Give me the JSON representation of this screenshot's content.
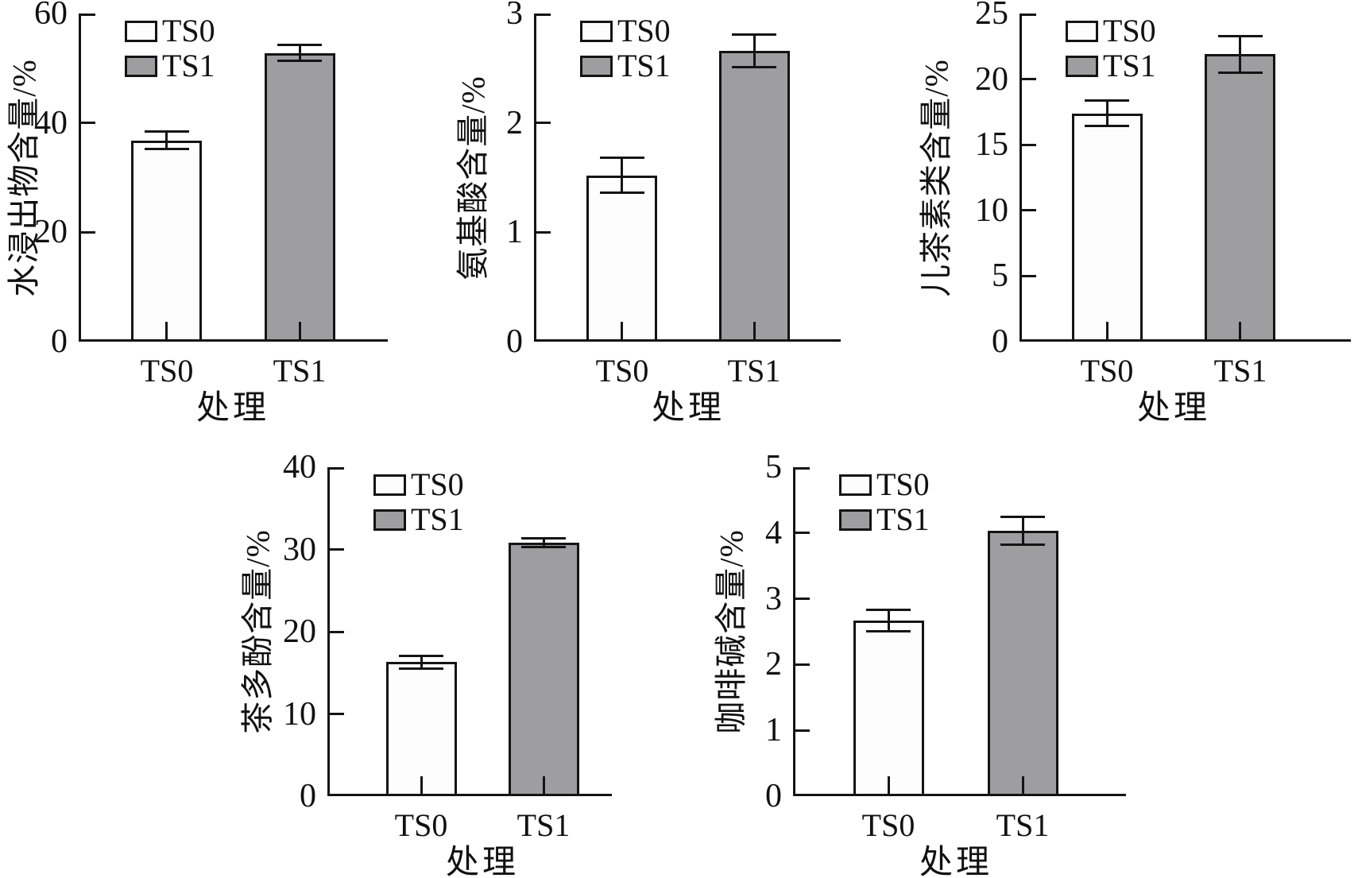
{
  "figure": {
    "background": "#ffffff",
    "x_axis_title": "处理",
    "treatment_labels": [
      "TS0",
      "TS1"
    ]
  },
  "colors": {
    "line": "#141414",
    "text": "#111111",
    "ts0_fill": "#fdfdfd",
    "ts1_fill": "#9e9ea1"
  },
  "chart_data": [
    {
      "id": "water-extract",
      "type": "bar",
      "ylabel": "水浸出物含量/%",
      "xlabel": "处理",
      "categories": [
        "TS0",
        "TS1"
      ],
      "series": [
        {
          "name": "TS0",
          "value": 36.8,
          "error": 1.6,
          "fill": "#fdfdfd"
        },
        {
          "name": "TS1",
          "value": 52.8,
          "error": 1.5,
          "fill": "#9e9ea1"
        }
      ],
      "ylim": [
        0,
        60
      ],
      "yticks": [
        0,
        20,
        40,
        60
      ],
      "legend": [
        "TS0",
        "TS1"
      ],
      "legend_position": "upper left",
      "grid": false
    },
    {
      "id": "amino-acid",
      "type": "bar",
      "ylabel": "氨基酸含量/%",
      "xlabel": "处理",
      "categories": [
        "TS0",
        "TS1"
      ],
      "series": [
        {
          "name": "TS0",
          "value": 1.52,
          "error": 0.16,
          "fill": "#fdfdfd"
        },
        {
          "name": "TS1",
          "value": 2.66,
          "error": 0.15,
          "fill": "#9e9ea1"
        }
      ],
      "ylim": [
        0,
        3
      ],
      "yticks": [
        0,
        1,
        2,
        3
      ],
      "legend": [
        "TS0",
        "TS1"
      ],
      "legend_position": "upper left",
      "grid": false
    },
    {
      "id": "catechins",
      "type": "bar",
      "ylabel": "儿茶素类含量/%",
      "xlabel": "处理",
      "categories": [
        "TS0",
        "TS1"
      ],
      "series": [
        {
          "name": "TS0",
          "value": 17.4,
          "error": 0.95,
          "fill": "#fdfdfd"
        },
        {
          "name": "TS1",
          "value": 21.9,
          "error": 1.4,
          "fill": "#9e9ea1"
        }
      ],
      "ylim": [
        0,
        25
      ],
      "yticks": [
        0,
        5,
        10,
        15,
        20,
        25
      ],
      "legend": [
        "TS0",
        "TS1"
      ],
      "legend_position": "upper left",
      "grid": false
    },
    {
      "id": "tea-polyphenols",
      "type": "bar",
      "ylabel": "茶多酚含量/%",
      "xlabel": "处理",
      "categories": [
        "TS0",
        "TS1"
      ],
      "series": [
        {
          "name": "TS0",
          "value": 16.3,
          "error": 0.8,
          "fill": "#fdfdfd"
        },
        {
          "name": "TS1",
          "value": 30.8,
          "error": 0.55,
          "fill": "#9e9ea1"
        }
      ],
      "ylim": [
        0,
        40
      ],
      "yticks": [
        0,
        10,
        20,
        30,
        40
      ],
      "legend": [
        "TS0",
        "TS1"
      ],
      "legend_position": "upper left",
      "grid": false
    },
    {
      "id": "caffeine",
      "type": "bar",
      "ylabel": "咖啡碱含量/%",
      "xlabel": "处理",
      "categories": [
        "TS0",
        "TS1"
      ],
      "series": [
        {
          "name": "TS0",
          "value": 2.67,
          "error": 0.16,
          "fill": "#fdfdfd"
        },
        {
          "name": "TS1",
          "value": 4.03,
          "error": 0.21,
          "fill": "#9e9ea1"
        }
      ],
      "ylim": [
        0,
        5
      ],
      "yticks": [
        0,
        1,
        2,
        3,
        4,
        5
      ],
      "legend": [
        "TS0",
        "TS1"
      ],
      "legend_position": "upper left",
      "grid": false
    }
  ]
}
